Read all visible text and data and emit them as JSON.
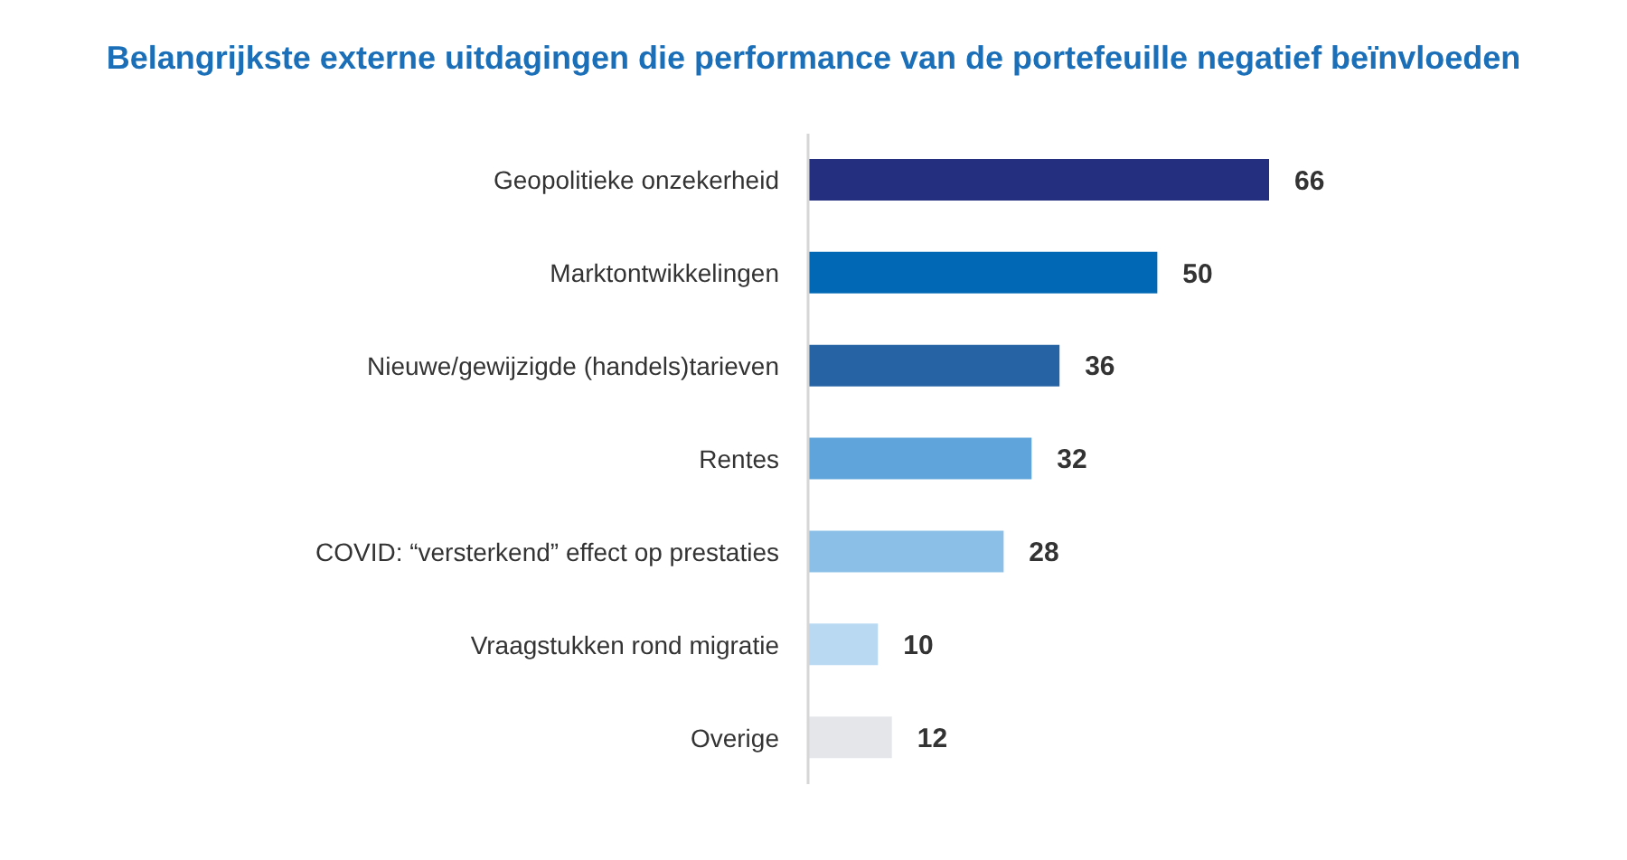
{
  "chart_data": {
    "type": "bar",
    "orientation": "horizontal",
    "title": "Belangrijkste externe uitdagingen die performance van de portefeuille negatief beïnvloeden",
    "categories": [
      "Geopolitieke onzekerheid",
      "Marktontwikkelingen",
      "Nieuwe/gewijzigde (handels)tarieven",
      "Rentes",
      "COVID: “versterkend” effect op prestaties",
      "Vraagstukken rond migratie",
      "Overige"
    ],
    "values": [
      66,
      50,
      36,
      32,
      28,
      10,
      12
    ],
    "colors": [
      "#252f80",
      "#0068b4",
      "#2563a5",
      "#5fa4da",
      "#8bbfe8",
      "#b9d8f2",
      "#e4e6ea"
    ],
    "data_labels": true
  }
}
